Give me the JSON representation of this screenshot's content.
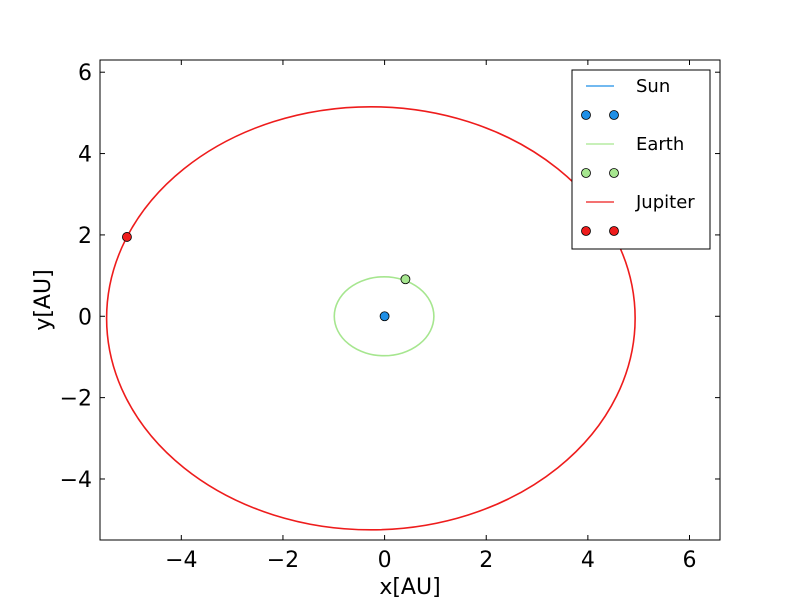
{
  "chart_data": {
    "type": "line",
    "xlabel": "x[AU]",
    "ylabel": "y[AU]",
    "xlim": [
      -5.6,
      6.6
    ],
    "ylim": [
      -5.5,
      6.3
    ],
    "xticks": [
      -4,
      -2,
      0,
      2,
      4,
      6
    ],
    "yticks": [
      -4,
      -2,
      0,
      2,
      4,
      6
    ],
    "xtick_labels": [
      "−4",
      "−2",
      "0",
      "2",
      "4",
      "6"
    ],
    "ytick_labels": [
      "−4",
      "−2",
      "0",
      "2",
      "4",
      "6"
    ],
    "grid": false,
    "legend_position": "upper right",
    "series": [
      {
        "name": "Sun",
        "color": "#1f8fe6",
        "orbit": {
          "center": [
            0,
            0
          ],
          "semi_axis_x": 0,
          "semi_axis_y": 0
        },
        "marker": [
          0,
          0
        ]
      },
      {
        "name": "Earth",
        "color": "#a6e68f",
        "orbit": {
          "center": [
            -0.01,
            0.0
          ],
          "semi_axis_x": 0.98,
          "semi_axis_y": 0.97
        },
        "marker": [
          0.41,
          0.91
        ]
      },
      {
        "name": "Jupiter",
        "color": "#ee1c1c",
        "orbit": {
          "center": [
            -0.27,
            -0.05
          ],
          "semi_axis_x": 5.2,
          "semi_axis_y": 5.2
        },
        "marker": [
          -5.07,
          1.95
        ]
      }
    ]
  }
}
